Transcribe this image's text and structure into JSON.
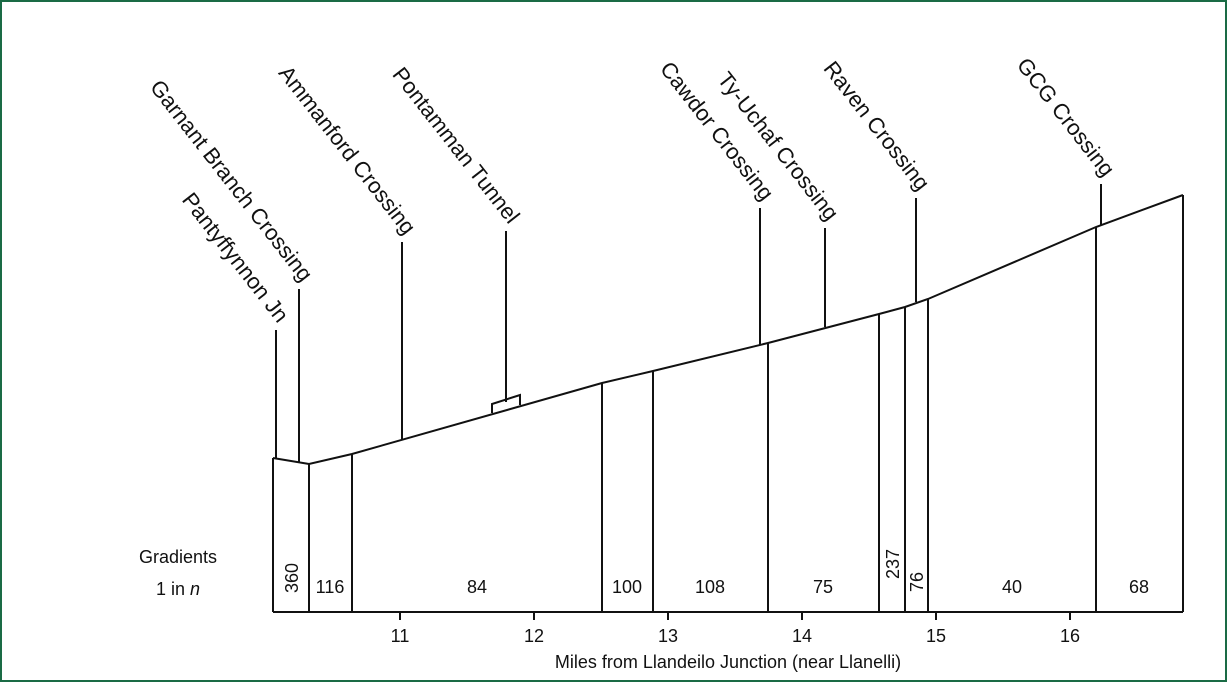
{
  "gradient_label": {
    "line1": "Gradients",
    "line2_prefix": "1 in ",
    "line2_var": "n"
  },
  "x_axis": {
    "label": "Miles from Llandeilo Junction (near Llanelli)",
    "ticks": [
      "11",
      "12",
      "13",
      "14",
      "15",
      "16"
    ]
  },
  "gradients": [
    "360",
    "116",
    "84",
    "100",
    "108",
    "75",
    "237",
    "76",
    "40",
    "68"
  ],
  "locations": [
    "Pantyffynnon Jn",
    "Garnant Branch Crossing",
    "Ammanford Crossing",
    "Pontamman Tunnel",
    "Cawdor Crossing",
    "Ty-Uchaf Crossing",
    "Raven Crossing",
    "GCG Crossing"
  ],
  "colors": {
    "border": "#1a6b45",
    "line": "#111111"
  }
}
